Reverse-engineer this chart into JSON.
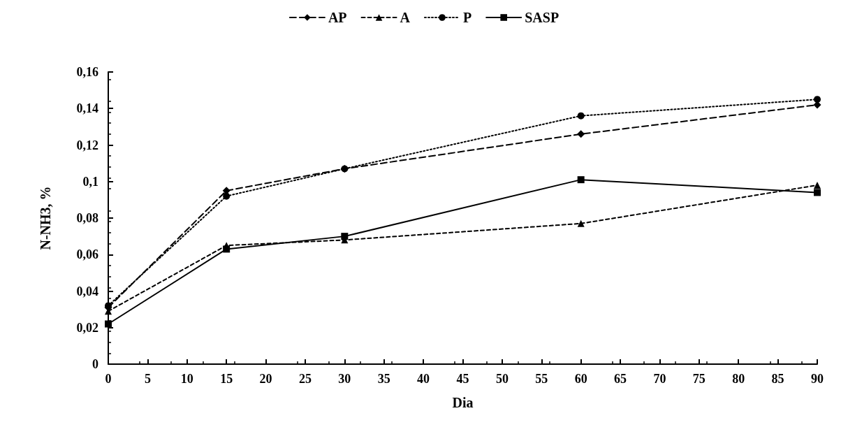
{
  "chart_data": {
    "type": "line",
    "xlabel": "Dia",
    "ylabel": "N-NH3, %",
    "x": [
      0,
      15,
      30,
      60,
      90
    ],
    "series": [
      {
        "name": "AP",
        "color": "#000000",
        "values": [
          0.031,
          0.095,
          0.107,
          0.126,
          0.142
        ],
        "marker": "diamond",
        "line_style": "dashed"
      },
      {
        "name": "A",
        "color": "#000000",
        "values": [
          0.029,
          0.065,
          0.068,
          0.077,
          0.098
        ],
        "marker": "triangle",
        "line_style": "dashed"
      },
      {
        "name": "P",
        "color": "#000000",
        "values": [
          0.032,
          0.092,
          0.107,
          0.136,
          0.145
        ],
        "marker": "circle",
        "line_style": "dotted"
      },
      {
        "name": "SASP",
        "color": "#000000",
        "values": [
          0.022,
          0.063,
          0.07,
          0.101,
          0.094
        ],
        "marker": "square",
        "line_style": "solid"
      }
    ],
    "xlim": [
      0,
      90
    ],
    "xticks": [
      0,
      5,
      10,
      15,
      20,
      25,
      30,
      35,
      40,
      45,
      50,
      55,
      60,
      65,
      70,
      75,
      80,
      85,
      90
    ],
    "ylim": [
      0,
      0.16
    ],
    "yticks": [
      {
        "value": 0,
        "label": "0"
      },
      {
        "value": 0.02,
        "label": "0,02"
      },
      {
        "value": 0.04,
        "label": "0,04"
      },
      {
        "value": 0.06,
        "label": "0,06"
      },
      {
        "value": 0.08,
        "label": "0,08"
      },
      {
        "value": 0.1,
        "label": "0,1"
      },
      {
        "value": 0.12,
        "label": "0,12"
      },
      {
        "value": 0.14,
        "label": "0,14"
      },
      {
        "value": 0.16,
        "label": "0,16"
      }
    ],
    "grid": false,
    "legend": "top"
  }
}
